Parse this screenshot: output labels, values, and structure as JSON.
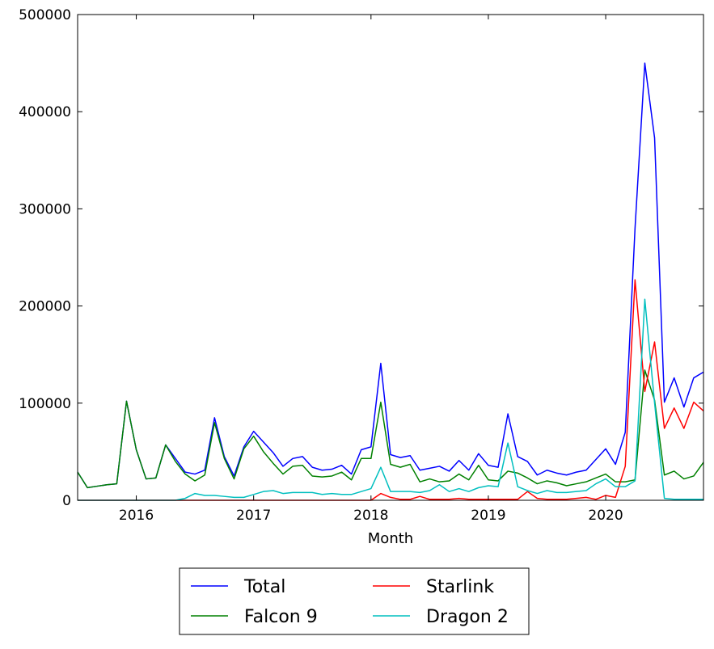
{
  "chart_data": {
    "type": "line",
    "title": "",
    "xlabel": "Month",
    "ylabel": "",
    "ylim": [
      0,
      500000
    ],
    "xlim": [
      "2015-07",
      "2020-11"
    ],
    "grid": false,
    "legend_position": "bottom-center",
    "x_tick_labels": [
      "2016",
      "2017",
      "2018",
      "2019",
      "2020"
    ],
    "y_tick_labels": [
      "0",
      "100000",
      "200000",
      "300000",
      "400000",
      "500000"
    ],
    "x": [
      "2015-07",
      "2015-08",
      "2015-09",
      "2015-10",
      "2015-11",
      "2015-12",
      "2016-01",
      "2016-02",
      "2016-03",
      "2016-04",
      "2016-05",
      "2016-06",
      "2016-07",
      "2016-08",
      "2016-09",
      "2016-10",
      "2016-11",
      "2016-12",
      "2017-01",
      "2017-02",
      "2017-03",
      "2017-04",
      "2017-05",
      "2017-06",
      "2017-07",
      "2017-08",
      "2017-09",
      "2017-10",
      "2017-11",
      "2017-12",
      "2018-01",
      "2018-02",
      "2018-03",
      "2018-04",
      "2018-05",
      "2018-06",
      "2018-07",
      "2018-08",
      "2018-09",
      "2018-10",
      "2018-11",
      "2018-12",
      "2019-01",
      "2019-02",
      "2019-03",
      "2019-04",
      "2019-05",
      "2019-06",
      "2019-07",
      "2019-08",
      "2019-09",
      "2019-10",
      "2019-11",
      "2019-12",
      "2020-01",
      "2020-02",
      "2020-03",
      "2020-04",
      "2020-05",
      "2020-06",
      "2020-07",
      "2020-08",
      "2020-09",
      "2020-10",
      "2020-11"
    ],
    "series": [
      {
        "name": "Total",
        "color": "#0000ff",
        "values": [
          29000,
          13000,
          14500,
          16000,
          17000,
          102000,
          52000,
          22000,
          23000,
          57000,
          43000,
          29000,
          27000,
          31000,
          85000,
          45000,
          25000,
          55000,
          71000,
          60000,
          49000,
          35000,
          43000,
          45000,
          34000,
          31000,
          32000,
          36000,
          27000,
          52000,
          55000,
          141000,
          47000,
          44000,
          46000,
          31000,
          33000,
          35000,
          30000,
          41000,
          31000,
          48000,
          36000,
          34000,
          89000,
          45000,
          40000,
          26000,
          31000,
          28000,
          26000,
          29000,
          31000,
          42000,
          53000,
          37000,
          70000,
          280000,
          450000,
          373000,
          101000,
          126000,
          96000,
          126000,
          132000
        ]
      },
      {
        "name": "Falcon 9",
        "color": "#008000",
        "values": [
          29000,
          13000,
          14500,
          16000,
          17000,
          102000,
          52000,
          22000,
          23000,
          57000,
          40000,
          27000,
          20000,
          26000,
          80000,
          43000,
          22000,
          53000,
          66000,
          50000,
          38000,
          27000,
          35000,
          36000,
          25000,
          24000,
          25000,
          29000,
          21000,
          43000,
          43000,
          101000,
          37000,
          34000,
          37000,
          19000,
          22000,
          19000,
          20000,
          27000,
          21000,
          36000,
          21000,
          20000,
          30000,
          28000,
          23000,
          17000,
          20000,
          18000,
          15000,
          17000,
          19000,
          23000,
          27000,
          19000,
          19000,
          21000,
          134000,
          103000,
          26000,
          30000,
          22000,
          25000,
          39000
        ]
      },
      {
        "name": "Starlink",
        "color": "#ff0000",
        "values": [
          0,
          0,
          0,
          0,
          0,
          0,
          0,
          0,
          0,
          0,
          0,
          0,
          0,
          0,
          0,
          0,
          0,
          0,
          0,
          0,
          0,
          0,
          0,
          0,
          0,
          0,
          0,
          0,
          0,
          0,
          0,
          7000,
          3000,
          1000,
          1000,
          4000,
          1000,
          1000,
          1000,
          2000,
          1000,
          1000,
          1000,
          1000,
          1000,
          1000,
          9000,
          2000,
          1000,
          1000,
          1000,
          2000,
          3000,
          1000,
          5000,
          3000,
          35000,
          227000,
          112000,
          163000,
          74000,
          95000,
          74000,
          101000,
          92000
        ]
      },
      {
        "name": "Dragon 2",
        "color": "#00bfbf",
        "values": [
          0,
          0,
          0,
          0,
          0,
          0,
          0,
          0,
          0,
          0,
          0,
          2000,
          7000,
          5000,
          5000,
          4000,
          3000,
          3000,
          6000,
          9000,
          10000,
          7000,
          8000,
          8000,
          8000,
          6000,
          7000,
          6000,
          6000,
          9000,
          12000,
          34000,
          9000,
          9000,
          9000,
          8000,
          10000,
          16000,
          9000,
          12000,
          9000,
          13000,
          15000,
          14000,
          59000,
          14000,
          10000,
          7000,
          10000,
          8000,
          8000,
          9000,
          10000,
          17000,
          22000,
          14000,
          14000,
          20000,
          207000,
          100000,
          2000,
          1000,
          1000,
          1000,
          1000
        ]
      }
    ]
  }
}
